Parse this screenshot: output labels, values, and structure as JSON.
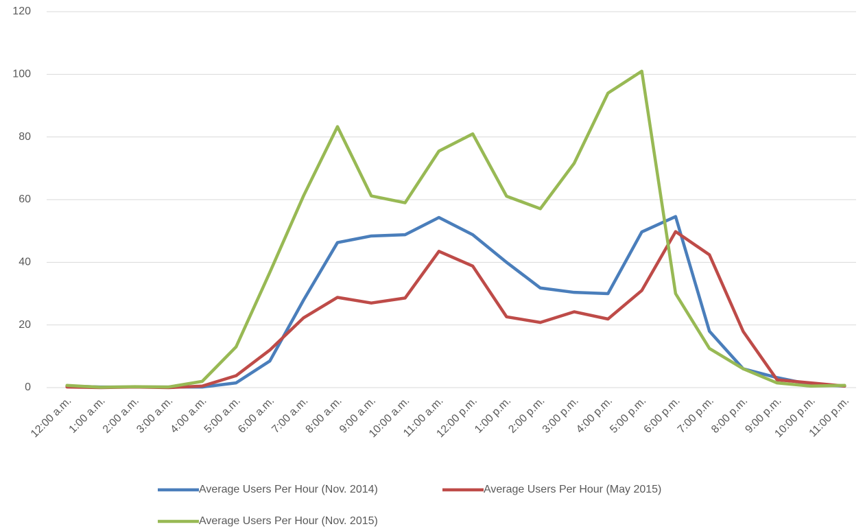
{
  "chart_data": {
    "type": "line",
    "categories": [
      "12:00 a.m.",
      "1:00 a.m.",
      "2:00 a.m.",
      "3:00 a.m.",
      "4:00 a.m.",
      "5:00 a.m.",
      "6:00 a.m.",
      "7:00 a.m.",
      "8:00 a.m.",
      "9:00 a.m.",
      "10:00 a.m.",
      "11:00 a.m.",
      "12:00 p.m.",
      "1:00 p.m.",
      "2:00 p.m.",
      "3:00 p.m.",
      "4:00 p.m.",
      "5:00 p.m.",
      "6:00 p.m.",
      "7:00 p.m.",
      "8:00 p.m.",
      "9:00 p.m.",
      "10:00 p.m.",
      "11:00 p.m."
    ],
    "series": [
      {
        "name": "Average Users Per Hour (Nov. 2014)",
        "color": "#4a7ebb",
        "values": [
          0.5,
          0.2,
          0.2,
          0.2,
          0.2,
          1.5,
          8.5,
          28,
          46.3,
          48.4,
          48.8,
          54.3,
          48.8,
          40,
          31.8,
          30.4,
          30,
          49.7,
          54.6,
          18,
          6,
          3.2,
          1,
          0.5
        ]
      },
      {
        "name": "Average Users Per Hour (May 2015)",
        "color": "#be4b48",
        "values": [
          0.2,
          0,
          0.2,
          0,
          0.5,
          3.8,
          12,
          22.3,
          28.8,
          27,
          28.6,
          43.5,
          38.8,
          22.6,
          20.8,
          24.2,
          21.9,
          31,
          49.8,
          42.4,
          17.9,
          2.5,
          1.5,
          0.5
        ]
      },
      {
        "name": "Average Users Per Hour (Nov. 2015)",
        "color": "#98b954",
        "values": [
          0.7,
          0.1,
          0.3,
          0.2,
          2,
          13,
          36.8,
          61.3,
          83.3,
          61.2,
          59,
          75.5,
          81,
          61.1,
          57.1,
          71.6,
          94,
          101,
          30,
          12.5,
          6,
          1.5,
          0.5,
          0.7
        ]
      }
    ],
    "ylim": [
      0,
      120
    ],
    "yticks": [
      0,
      20,
      40,
      60,
      80,
      100,
      120
    ],
    "grid": true
  }
}
